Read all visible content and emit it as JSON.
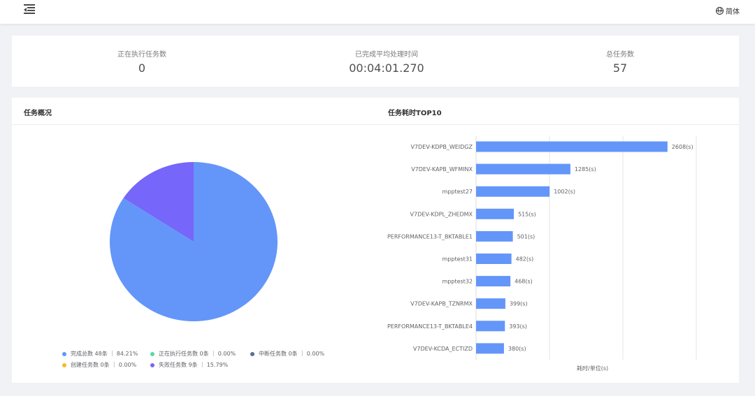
{
  "header": {
    "menu_icon": "menu-fold-icon",
    "language": "简体",
    "language_icon": "globe-icon"
  },
  "stats": [
    {
      "label": "正在执行任务数",
      "value": "0"
    },
    {
      "label": "已完成平均处理时间",
      "value": "00:04:01.270"
    },
    {
      "label": "总任务数",
      "value": "57"
    }
  ],
  "overview": {
    "title": "任务概况",
    "legend": [
      {
        "text": "完成总数 48条 ｜ 84.21%",
        "color": "#6496f9"
      },
      {
        "text": "正在执行任务数 0条 ｜ 0.00%",
        "color": "#5ad8a6"
      },
      {
        "text": "中断任务数 0条 ｜ 0.00%",
        "color": "#5d7092"
      },
      {
        "text": "创建任务数 0条 ｜ 0.00%",
        "color": "#f6bd16"
      },
      {
        "text": "失败任务数 9条 ｜ 15.79%",
        "color": "#7666f9"
      }
    ]
  },
  "top10": {
    "title": "任务耗时TOP10",
    "xlabel": "耗时/单位(s)"
  },
  "chart_data": [
    {
      "type": "pie",
      "title": "任务概况",
      "slices": [
        {
          "name": "完成总数",
          "value": 48,
          "percent": 84.21,
          "color": "#6496f9"
        },
        {
          "name": "正在执行任务数",
          "value": 0,
          "percent": 0.0,
          "color": "#5ad8a6"
        },
        {
          "name": "中断任务数",
          "value": 0,
          "percent": 0.0,
          "color": "#5d7092"
        },
        {
          "name": "创建任务数",
          "value": 0,
          "percent": 0.0,
          "color": "#f6bd16"
        },
        {
          "name": "失败任务数",
          "value": 9,
          "percent": 15.79,
          "color": "#7666f9"
        }
      ]
    },
    {
      "type": "bar",
      "orientation": "horizontal",
      "title": "任务耗时TOP10",
      "xlabel": "耗时/单位(s)",
      "xlim": [
        0,
        3000
      ],
      "grid": true,
      "color": "#6496f9",
      "categories": [
        "V7DEV-KDPB_WEIDGZ",
        "V7DEV-KAPB_WFMINX",
        "mpptest27",
        "V7DEV-KDPL_ZHEDMX",
        "PERFORMANCE13-T_BKTABLE1",
        "mpptest31",
        "mpptest32",
        "V7DEV-KAPB_TZNRMX",
        "PERFORMANCE13-T_BKTABLE4",
        "V7DEV-KCDA_ECTIZD"
      ],
      "values": [
        2608,
        1285,
        1002,
        515,
        501,
        482,
        468,
        399,
        393,
        380
      ],
      "value_labels": [
        "2608(s)",
        "1285(s)",
        "1002(s)",
        "515(s)",
        "501(s)",
        "482(s)",
        "468(s)",
        "399(s)",
        "393(s)",
        "380(s)"
      ]
    }
  ]
}
